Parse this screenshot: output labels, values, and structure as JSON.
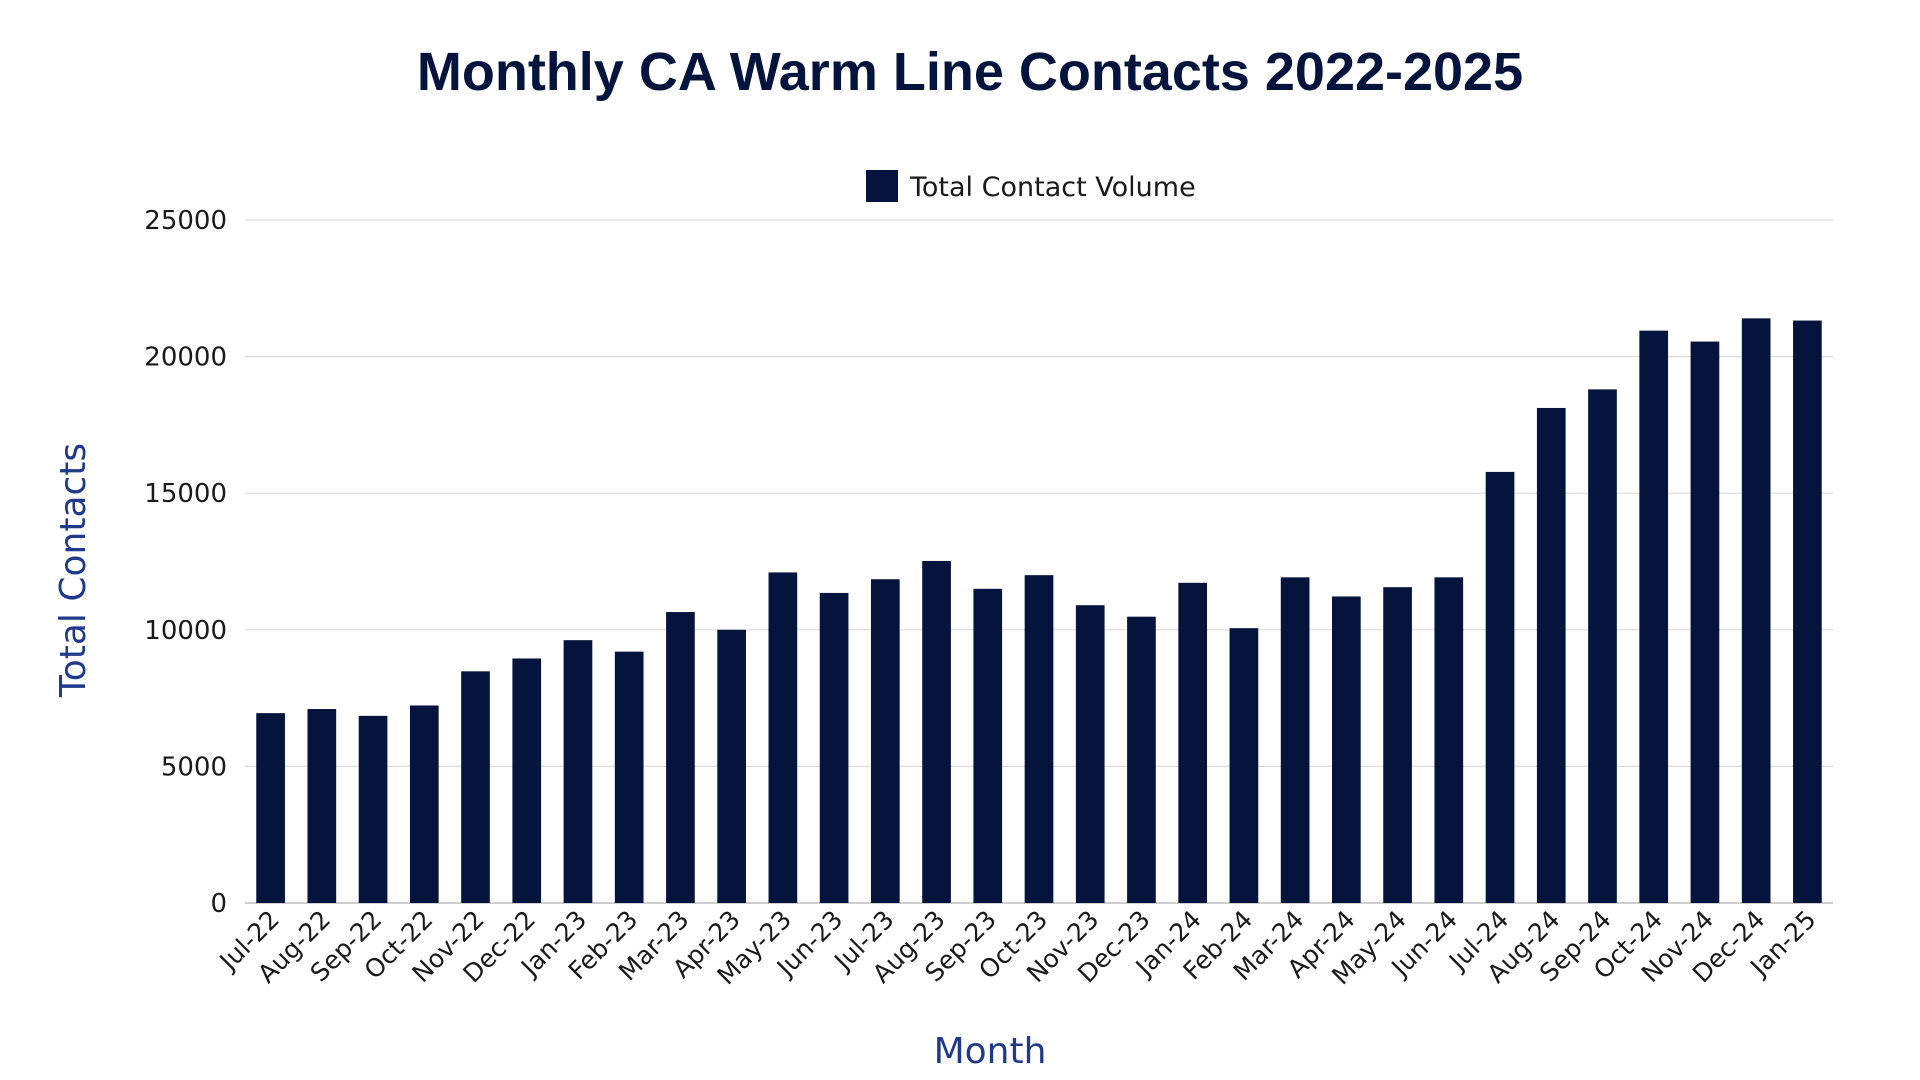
{
  "chart_data": {
    "type": "bar",
    "title": "Monthly CA Warm Line Contacts 2022-2025",
    "xlabel": "Month",
    "ylabel": "Total Contacts",
    "ylim": [
      0,
      25000
    ],
    "yticks": [
      0,
      5000,
      10000,
      15000,
      20000,
      25000
    ],
    "grid": true,
    "legend_position": "top-center",
    "categories": [
      "Jul-22",
      "Aug-22",
      "Sep-22",
      "Oct-22",
      "Nov-22",
      "Dec-22",
      "Jan-23",
      "Feb-23",
      "Mar-23",
      "Apr-23",
      "May-23",
      "Jun-23",
      "Jul-23",
      "Aug-23",
      "Sep-23",
      "Oct-23",
      "Nov-23",
      "Dec-23",
      "Jan-24",
      "Feb-24",
      "Mar-24",
      "Apr-24",
      "May-24",
      "Jun-24",
      "Jul-24",
      "Aug-24",
      "Sep-24",
      "Oct-24",
      "Nov-24",
      "Dec-24",
      "Jan-25"
    ],
    "series": [
      {
        "name": "Total Contact Volume",
        "color": "#05143d",
        "values": [
          6950,
          7100,
          6850,
          7230,
          8480,
          8950,
          9620,
          9200,
          10650,
          10000,
          12100,
          11350,
          11850,
          12520,
          11500,
          12000,
          10900,
          10480,
          11720,
          10060,
          11920,
          11220,
          11560,
          11920,
          15780,
          18120,
          18800,
          20950,
          20550,
          21400,
          21320
        ]
      }
    ]
  },
  "colors": {
    "bar": "#05143d",
    "title": "#05143d",
    "axis_title": "#1f3a8a",
    "tick_label": "#1a1a1a",
    "grid": "#dcdcdc"
  }
}
